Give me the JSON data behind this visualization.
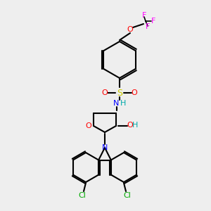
{
  "bg_color": "#eeeeee",
  "atom_colors": {
    "C": "#000000",
    "N": "#0000ff",
    "O": "#ff0000",
    "S": "#cccc00",
    "F": "#ff00ff",
    "Cl": "#00aa00",
    "H": "#00aaaa"
  },
  "bond_color": "#000000",
  "figsize": [
    3.0,
    3.0
  ],
  "dpi": 100
}
